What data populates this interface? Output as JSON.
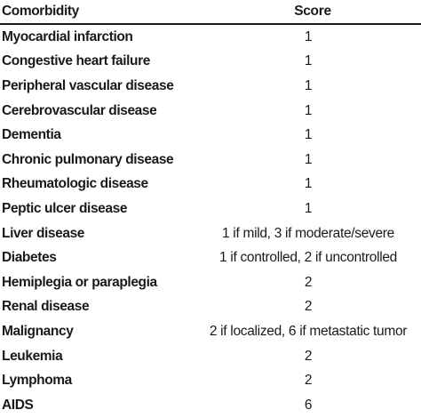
{
  "table": {
    "headers": {
      "comorbidity": "Comorbidity",
      "score": "Score"
    },
    "rows": [
      {
        "comorbidity": "Myocardial infarction",
        "score": "1"
      },
      {
        "comorbidity": "Congestive heart failure",
        "score": "1"
      },
      {
        "comorbidity": "Peripheral vascular disease",
        "score": "1"
      },
      {
        "comorbidity": "Cerebrovascular disease",
        "score": "1"
      },
      {
        "comorbidity": "Dementia",
        "score": "1"
      },
      {
        "comorbidity": "Chronic pulmonary disease",
        "score": "1"
      },
      {
        "comorbidity": "Rheumatologic disease",
        "score": "1"
      },
      {
        "comorbidity": "Peptic ulcer disease",
        "score": "1"
      },
      {
        "comorbidity": "Liver disease",
        "score": "1 if mild,  3 if moderate/severe"
      },
      {
        "comorbidity": "Diabetes",
        "score": "1 if controlled, 2 if uncontrolled"
      },
      {
        "comorbidity": "Hemiplegia or paraplegia",
        "score": "2"
      },
      {
        "comorbidity": "Renal disease",
        "score": "2"
      },
      {
        "comorbidity": "Malignancy",
        "score": "2 if localized, 6 if metastatic tumor"
      },
      {
        "comorbidity": "Leukemia",
        "score": "2"
      },
      {
        "comorbidity": "Lymphoma",
        "score": "2"
      },
      {
        "comorbidity": "AIDS",
        "score": "6"
      }
    ]
  }
}
